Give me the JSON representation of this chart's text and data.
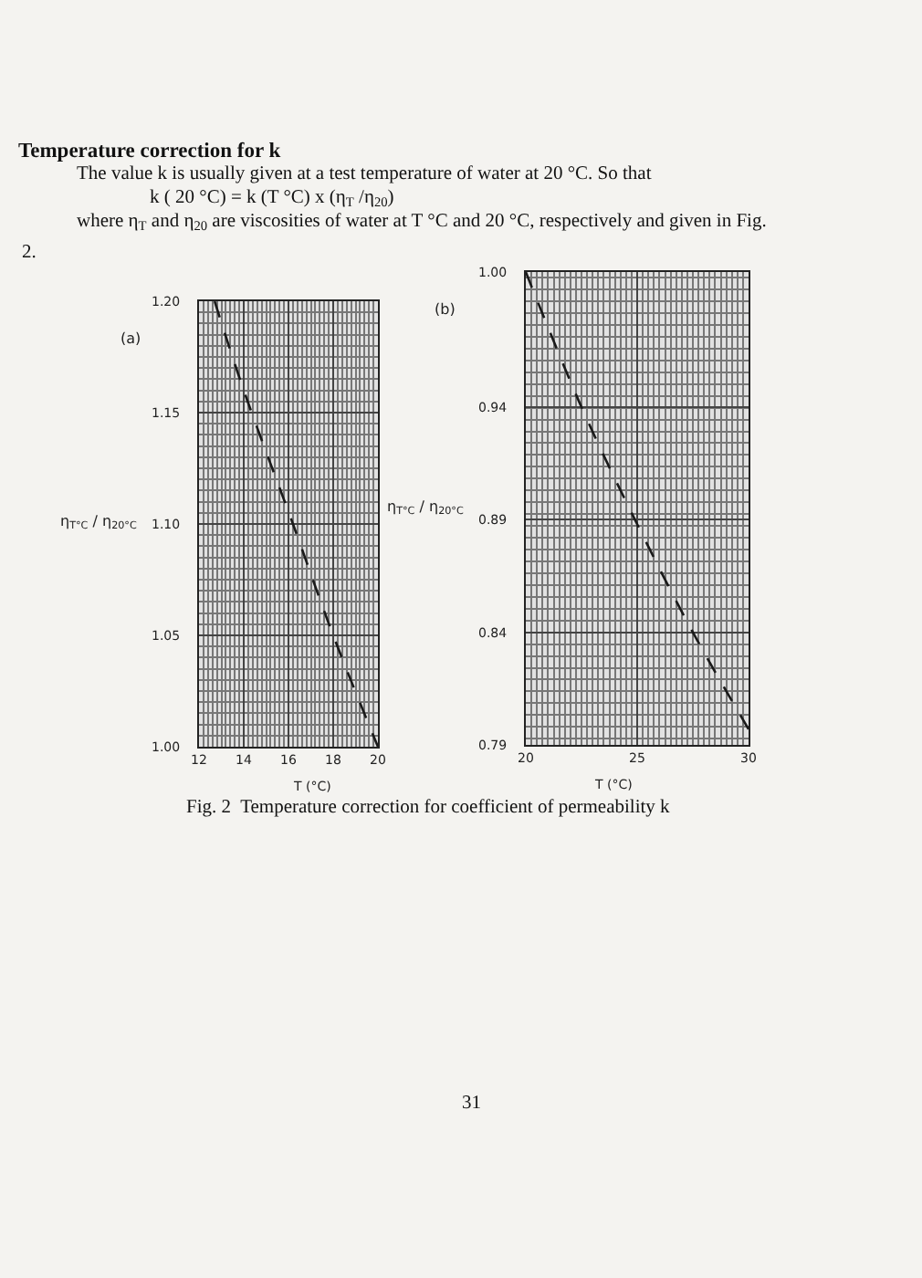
{
  "chart_data": [
    {
      "type": "line",
      "title": "Temperature correction for k",
      "xlabel": "T (°C)",
      "ylabel": "η$_{T°C}$ / η$_{20°C}$",
      "annotations": [
        "(a)",
        "The value k is usually given at a test temperature of water at 20 °C. So that",
        "k ( 20 °C) = k (T °C) x (η$_{T}$ /η$_{20}$)",
        "where η$_{T}$ and η$_{20}$ are viscosities of water at T °C and 20 °C, respectively and given in Fig.",
        "2."
      ],
      "x": [
        12.7,
        14,
        16.2,
        18,
        20
      ],
      "series": [
        {
          "color": "#1a1a1a",
          "values": [
            1.2,
            1.16,
            1.1,
            1.05,
            1.0
          ]
        }
      ],
      "xlim": [
        12,
        20
      ],
      "ylim": [
        1.0,
        1.2
      ],
      "xticks": [
        12,
        14,
        16,
        18,
        20
      ],
      "yticks": [
        {
          "value": 1.0,
          "label": "1.00"
        },
        1.05,
        {
          "value": 1.1,
          "label": "1.10"
        },
        1.15,
        {
          "value": 1.2,
          "label": "1.20"
        }
      ],
      "grid": true,
      "line_style": "dashed"
    },
    {
      "type": "line",
      "xlabel": "T (°C)",
      "ylabel": "η$_{T°C}$ / η$_{20°C}$",
      "annotations": [
        "(b)",
        "Fig. 2  Temperature correction for coefficient of permeability k",
        "31"
      ],
      "x": [
        20,
        22.5,
        25,
        27.5,
        30
      ],
      "series": [
        {
          "color": "#1a1a1a",
          "values": [
            1.0,
            0.94,
            0.888,
            0.84,
            0.797
          ]
        }
      ],
      "xlim": [
        20,
        30
      ],
      "ylim": [
        0.79,
        1.0
      ],
      "xticks": [
        20,
        25,
        30
      ],
      "yticks": [
        0.79,
        0.84,
        0.89,
        0.94,
        {
          "value": 1.0,
          "label": "1.00"
        }
      ],
      "grid": true,
      "line_style": "dashed"
    }
  ]
}
